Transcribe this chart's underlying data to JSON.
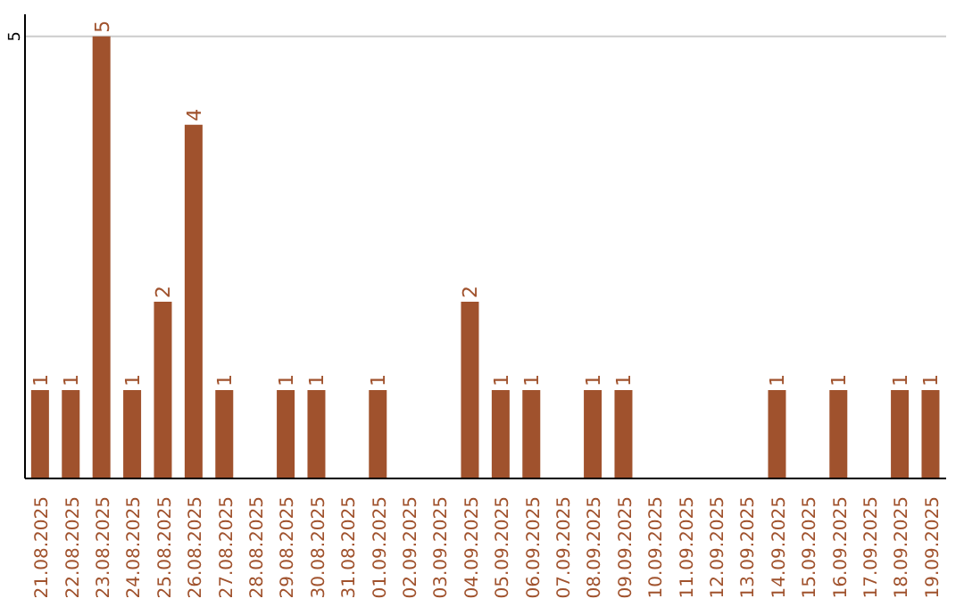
{
  "chart_data": {
    "type": "bar",
    "categories": [
      "21.08.2025",
      "22.08.2025",
      "23.08.2025",
      "24.08.2025",
      "25.08.2025",
      "26.08.2025",
      "27.08.2025",
      "28.08.2025",
      "29.08.2025",
      "30.08.2025",
      "31.08.2025",
      "01.09.2025",
      "02.09.2025",
      "03.09.2025",
      "04.09.2025",
      "05.09.2025",
      "06.09.2025",
      "07.09.2025",
      "08.09.2025",
      "09.09.2025",
      "10.09.2025",
      "11.09.2025",
      "12.09.2025",
      "13.09.2025",
      "14.09.2025",
      "15.09.2025",
      "16.09.2025",
      "17.09.2025",
      "18.09.2025",
      "19.09.2025"
    ],
    "values": [
      1,
      1,
      5,
      1,
      2,
      4,
      1,
      0,
      1,
      1,
      0,
      1,
      0,
      0,
      2,
      1,
      1,
      0,
      1,
      1,
      0,
      0,
      0,
      0,
      1,
      0,
      1,
      0,
      1,
      1
    ],
    "value_labels": [
      "1",
      "1",
      "5",
      "1",
      "2",
      "4",
      "1",
      null,
      "1",
      "1",
      null,
      "1",
      null,
      null,
      "2",
      "1",
      "1",
      null,
      "1",
      "1",
      null,
      null,
      null,
      null,
      "1",
      null,
      "1",
      null,
      "1",
      "1"
    ],
    "color": "#a0522d",
    "ylim": [
      0,
      5.25
    ],
    "yticks": [
      5
    ],
    "grid": "y",
    "legend": false
  }
}
